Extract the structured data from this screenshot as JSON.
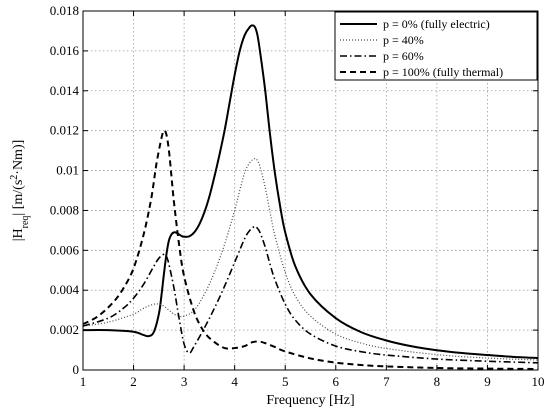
{
  "chart_data": {
    "type": "line",
    "title": "",
    "xlabel": "Frequency [Hz]",
    "ylabel": "|H_req| [m/(s^2·Nm)]",
    "ylabel_parts": {
      "main1": "|H",
      "sub": "req",
      "main2": "| [m/(s",
      "sup": "2",
      "main3": "·Nm)]"
    },
    "xlim": [
      1,
      10
    ],
    "ylim": [
      0,
      0.018
    ],
    "xticks": [
      1,
      2,
      3,
      4,
      5,
      6,
      7,
      8,
      9,
      10
    ],
    "xtick_labels": [
      "1",
      "2",
      "3",
      "4",
      "5",
      "6",
      "7",
      "8",
      "9",
      "10"
    ],
    "yticks": [
      0,
      0.002,
      0.004,
      0.006,
      0.008,
      0.01,
      0.012,
      0.014,
      0.016,
      0.018
    ],
    "ytick_labels": [
      "0",
      "0.002",
      "0.004",
      "0.006",
      "0.008",
      "0.01",
      "0.012",
      "0.014",
      "0.016",
      "0.018"
    ],
    "grid": true,
    "legend_position": "top-right",
    "series": [
      {
        "name": "p = 0% (fully electric)",
        "style": "solid",
        "color": "#000000",
        "x": [
          1.0,
          1.5,
          2.0,
          2.2,
          2.3,
          2.4,
          2.5,
          2.55,
          2.6,
          2.65,
          2.7,
          2.75,
          2.8,
          2.85,
          2.9,
          2.95,
          3.0,
          3.1,
          3.2,
          3.3,
          3.4,
          3.5,
          3.6,
          3.7,
          3.8,
          3.9,
          4.0,
          4.1,
          4.2,
          4.3,
          4.35,
          4.4,
          4.45,
          4.5,
          4.6,
          4.7,
          4.8,
          4.9,
          5.0,
          5.2,
          5.5,
          6.0,
          6.5,
          7.0,
          7.5,
          8.0,
          8.5,
          9.0,
          9.5,
          10.0
        ],
        "y": [
          0.002,
          0.002,
          0.00192,
          0.00175,
          0.0017,
          0.0019,
          0.0028,
          0.0037,
          0.0048,
          0.0058,
          0.0065,
          0.0068,
          0.0069,
          0.00688,
          0.0068,
          0.00672,
          0.00668,
          0.0067,
          0.0069,
          0.0073,
          0.0079,
          0.0087,
          0.0097,
          0.0108,
          0.012,
          0.0134,
          0.0148,
          0.016,
          0.0168,
          0.0172,
          0.01728,
          0.0172,
          0.0168,
          0.016,
          0.0141,
          0.0118,
          0.0098,
          0.0082,
          0.0069,
          0.0052,
          0.0038,
          0.0026,
          0.0019,
          0.00148,
          0.00119,
          0.00099,
          0.00085,
          0.00075,
          0.00066,
          0.0006
        ]
      },
      {
        "name": "p = 40%",
        "style": "dotted",
        "color": "#000000",
        "x": [
          1.0,
          1.5,
          2.0,
          2.2,
          2.4,
          2.5,
          2.6,
          2.7,
          2.8,
          2.9,
          3.0,
          3.2,
          3.4,
          3.6,
          3.8,
          4.0,
          4.1,
          4.2,
          4.3,
          4.4,
          4.45,
          4.5,
          4.6,
          4.7,
          4.8,
          5.0,
          5.2,
          5.5,
          6.0,
          6.5,
          7.0,
          8.0,
          9.0,
          10.0
        ],
        "y": [
          0.0022,
          0.0024,
          0.0028,
          0.0031,
          0.0033,
          0.0033,
          0.0032,
          0.003,
          0.0028,
          0.0027,
          0.0027,
          0.003,
          0.0038,
          0.0049,
          0.0063,
          0.008,
          0.009,
          0.0099,
          0.0104,
          0.0106,
          0.0105,
          0.0102,
          0.0092,
          0.0079,
          0.0067,
          0.0049,
          0.0037,
          0.0027,
          0.0018,
          0.00135,
          0.00108,
          0.00077,
          0.0006,
          0.0005
        ]
      },
      {
        "name": "p = 60%",
        "style": "dashdot",
        "color": "#000000",
        "x": [
          1.0,
          1.5,
          1.8,
          2.0,
          2.2,
          2.4,
          2.5,
          2.6,
          2.65,
          2.7,
          2.8,
          2.9,
          3.0,
          3.1,
          3.2,
          3.4,
          3.6,
          3.8,
          4.0,
          4.2,
          4.3,
          4.4,
          4.45,
          4.5,
          4.6,
          4.7,
          4.8,
          5.0,
          5.2,
          5.5,
          6.0,
          6.5,
          7.0,
          8.0,
          9.0,
          10.0
        ],
        "y": [
          0.0022,
          0.0026,
          0.0031,
          0.0036,
          0.0043,
          0.0052,
          0.0056,
          0.0058,
          0.0057,
          0.0053,
          0.0041,
          0.0026,
          0.0013,
          0.00085,
          0.0012,
          0.0021,
          0.0031,
          0.0042,
          0.0054,
          0.0066,
          0.007,
          0.0072,
          0.0071,
          0.0069,
          0.0062,
          0.0053,
          0.0045,
          0.0033,
          0.0025,
          0.0018,
          0.0012,
          0.00092,
          0.00075,
          0.00055,
          0.00044,
          0.00036
        ]
      },
      {
        "name": "p = 100% (fully thermal)",
        "style": "dashed",
        "color": "#000000",
        "x": [
          1.0,
          1.3,
          1.6,
          1.8,
          2.0,
          2.2,
          2.35,
          2.45,
          2.55,
          2.6,
          2.65,
          2.7,
          2.75,
          2.8,
          2.9,
          3.0,
          3.2,
          3.4,
          3.6,
          3.8,
          4.0,
          4.2,
          4.3,
          4.4,
          4.5,
          4.6,
          4.8,
          5.0,
          5.5,
          6.0,
          6.5,
          7.0,
          8.0,
          9.0,
          10.0
        ],
        "y": [
          0.0023,
          0.0027,
          0.0034,
          0.0041,
          0.0051,
          0.0068,
          0.0086,
          0.0103,
          0.0116,
          0.012,
          0.0118,
          0.011,
          0.0097,
          0.0084,
          0.0063,
          0.0047,
          0.0029,
          0.0019,
          0.0014,
          0.0011,
          0.0011,
          0.0012,
          0.00135,
          0.00142,
          0.00142,
          0.00135,
          0.00115,
          0.00093,
          0.00058,
          0.00037,
          0.00025,
          0.00018,
          0.0001,
          7e-05,
          5e-05
        ]
      }
    ]
  }
}
